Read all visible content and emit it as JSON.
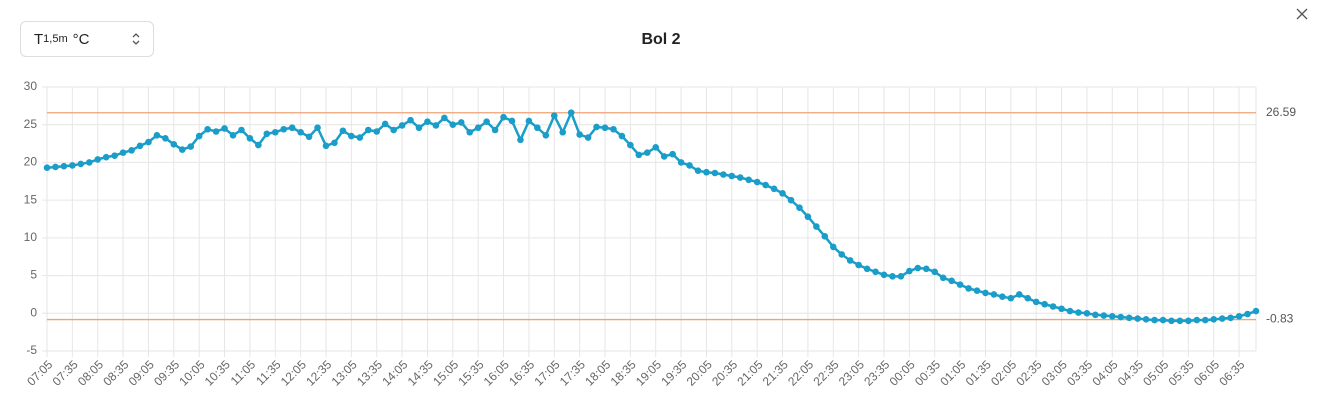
{
  "selector": {
    "text": "T",
    "subscript": "1,5m",
    "unit": "°C"
  },
  "chart_data": {
    "type": "line",
    "title": "Bol 2",
    "categories": [
      "07:05",
      null,
      null,
      "07:35",
      null,
      null,
      "08:05",
      null,
      null,
      "08:35",
      null,
      null,
      "09:05",
      null,
      null,
      "09:35",
      null,
      null,
      "10:05",
      null,
      null,
      "10:35",
      null,
      null,
      "11:05",
      null,
      null,
      "11:35",
      null,
      null,
      "12:05",
      null,
      null,
      "12:35",
      null,
      null,
      "13:05",
      null,
      null,
      "13:35",
      null,
      null,
      "14:05",
      null,
      null,
      "14:35",
      null,
      null,
      "15:05",
      null,
      null,
      "15:35",
      null,
      null,
      "16:05",
      null,
      null,
      "16:35",
      null,
      null,
      "17:05",
      null,
      null,
      "17:35",
      null,
      null,
      "18:05",
      null,
      null,
      "18:35",
      null,
      null,
      "19:05",
      null,
      null,
      "19:35",
      null,
      null,
      "20:05",
      null,
      null,
      "20:35",
      null,
      null,
      "21:05",
      null,
      null,
      "21:35",
      null,
      null,
      "22:05",
      null,
      null,
      "22:35",
      null,
      null,
      "23:05",
      null,
      null,
      "23:35",
      null,
      null,
      "00:05",
      null,
      null,
      "00:35",
      null,
      null,
      "01:05",
      null,
      null,
      "01:35",
      null,
      null,
      "02:05",
      null,
      null,
      "02:35",
      null,
      null,
      "03:05",
      null,
      null,
      "03:35",
      null,
      null,
      "04:05",
      null,
      null,
      "04:35",
      null,
      null,
      "05:05",
      null,
      null,
      "05:35",
      null,
      null,
      "06:05",
      null,
      null,
      "06:35",
      null,
      null
    ],
    "series": [
      {
        "color": "#1a9ec9",
        "values": [
          19.3,
          19.4,
          19.5,
          19.6,
          19.8,
          20.0,
          20.4,
          20.7,
          20.9,
          21.3,
          21.6,
          22.2,
          22.7,
          23.6,
          23.2,
          22.4,
          21.7,
          22.1,
          23.5,
          24.4,
          24.1,
          24.5,
          23.6,
          24.3,
          23.2,
          22.3,
          23.8,
          24.0,
          24.4,
          24.6,
          24.0,
          23.4,
          24.6,
          22.2,
          22.6,
          24.2,
          23.5,
          23.3,
          24.3,
          24.1,
          25.1,
          24.3,
          24.9,
          25.6,
          24.6,
          25.4,
          24.9,
          25.9,
          25.0,
          25.3,
          24.0,
          24.6,
          25.4,
          24.3,
          26.0,
          25.5,
          23.0,
          25.5,
          24.6,
          23.6,
          26.2,
          24.0,
          26.6,
          23.7,
          23.3,
          24.7,
          24.6,
          24.4,
          23.5,
          22.3,
          21.0,
          21.3,
          22.0,
          20.8,
          21.1,
          20.0,
          19.6,
          18.9,
          18.7,
          18.6,
          18.4,
          18.2,
          18.0,
          17.7,
          17.4,
          17.0,
          16.5,
          15.9,
          15.0,
          14.0,
          12.8,
          11.5,
          10.2,
          8.8,
          7.8,
          7.0,
          6.4,
          5.9,
          5.5,
          5.1,
          4.9,
          4.9,
          5.6,
          6.0,
          5.9,
          5.5,
          4.7,
          4.3,
          3.8,
          3.3,
          3.0,
          2.7,
          2.5,
          2.2,
          2.0,
          2.5,
          2.0,
          1.5,
          1.2,
          0.9,
          0.6,
          0.3,
          0.1,
          0.0,
          -0.2,
          -0.3,
          -0.4,
          -0.5,
          -0.6,
          -0.7,
          -0.8,
          -0.9,
          -0.9,
          -1.0,
          -1.0,
          -1.0,
          -0.9,
          -0.9,
          -0.8,
          -0.7,
          -0.6,
          -0.4,
          -0.1,
          0.3
        ]
      }
    ],
    "reference_lines": [
      {
        "value": 26.59,
        "color": "#f0a276"
      },
      {
        "value": -0.83,
        "color": "#f0a276"
      }
    ],
    "ylim": [
      -5,
      30
    ],
    "yticks": [
      -5,
      0,
      5,
      10,
      15,
      20,
      25,
      30
    ],
    "grid": true
  }
}
